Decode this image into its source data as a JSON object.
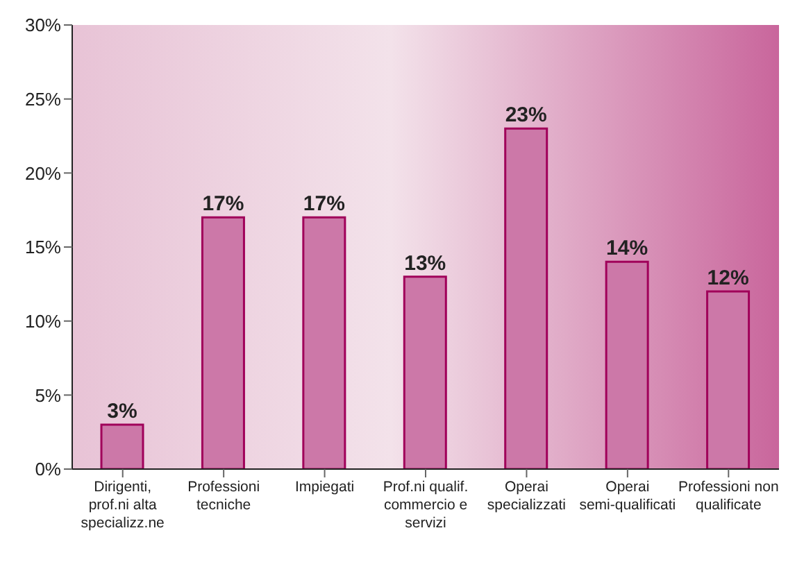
{
  "chart_data": {
    "type": "bar",
    "categories": [
      "Dirigenti, prof.ni alta specializz.ne",
      "Professioni tecniche",
      "Impiegati",
      "Prof.ni qualif. commercio e servizi",
      "Operai specializzati",
      "Operai semi-qualificati",
      "Professioni non qualificate"
    ],
    "values": [
      3,
      17,
      17,
      13,
      23,
      14,
      12
    ],
    "color": "#cc78a8",
    "ylim": [
      0,
      30
    ],
    "yticks": [
      {
        "value": 0,
        "label": "0%"
      },
      {
        "value": 5,
        "label": "5%"
      },
      {
        "value": 10,
        "label": "10%"
      },
      {
        "value": 15,
        "label": "15%"
      },
      {
        "value": 20,
        "label": "20%"
      },
      {
        "value": 25,
        "label": "25%"
      },
      {
        "value": 30,
        "label": "30%"
      }
    ],
    "data_labels": true,
    "value_labels": [
      "3%",
      "17%",
      "17%",
      "13%",
      "23%",
      "14%",
      "12%"
    ],
    "grid": false,
    "legend": false
  }
}
